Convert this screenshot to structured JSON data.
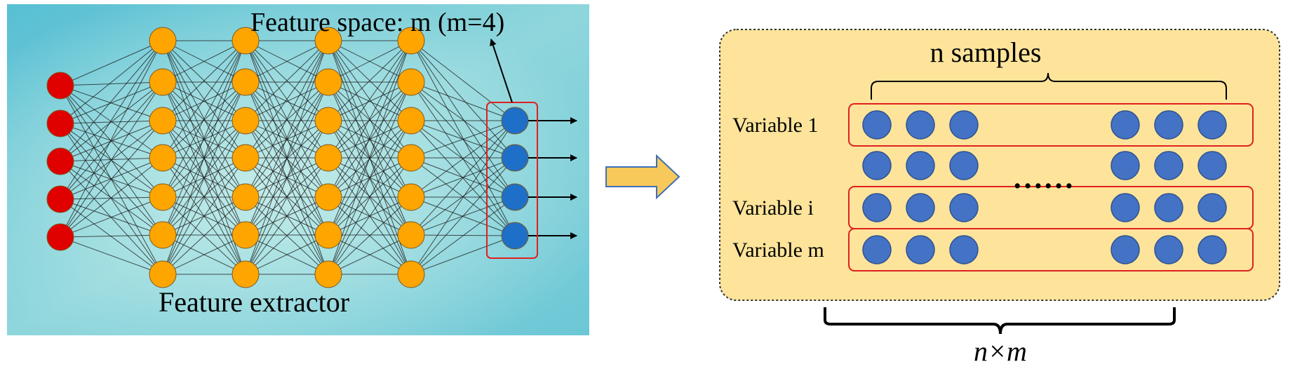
{
  "left_panel": {
    "feature_space_label": "Feature space: m (m=4)",
    "feature_extractor_label": "Feature extractor",
    "input_nodes": 5,
    "hidden_layers": [
      7,
      7,
      7,
      7
    ],
    "output_nodes": 4
  },
  "right_panel": {
    "samples_label": "n samples",
    "rows": [
      {
        "label": "Variable 1",
        "highlighted": true
      },
      {
        "label": "",
        "highlighted": false
      },
      {
        "label": "Variable i",
        "highlighted": true
      },
      {
        "label": "Variable m",
        "highlighted": true
      }
    ],
    "ellipsis": "……",
    "circles_left": 3,
    "circles_right": 3,
    "dimension_label": "n×m"
  },
  "colors": {
    "input_node": "#e00000",
    "hidden_node": "#ffa500",
    "output_node": "#1e6fc8",
    "sample_node": "#4472c4",
    "panel_fill": "#fde49a",
    "highlight_box": "#e02020",
    "arrow_fill": "#f7c85a"
  }
}
